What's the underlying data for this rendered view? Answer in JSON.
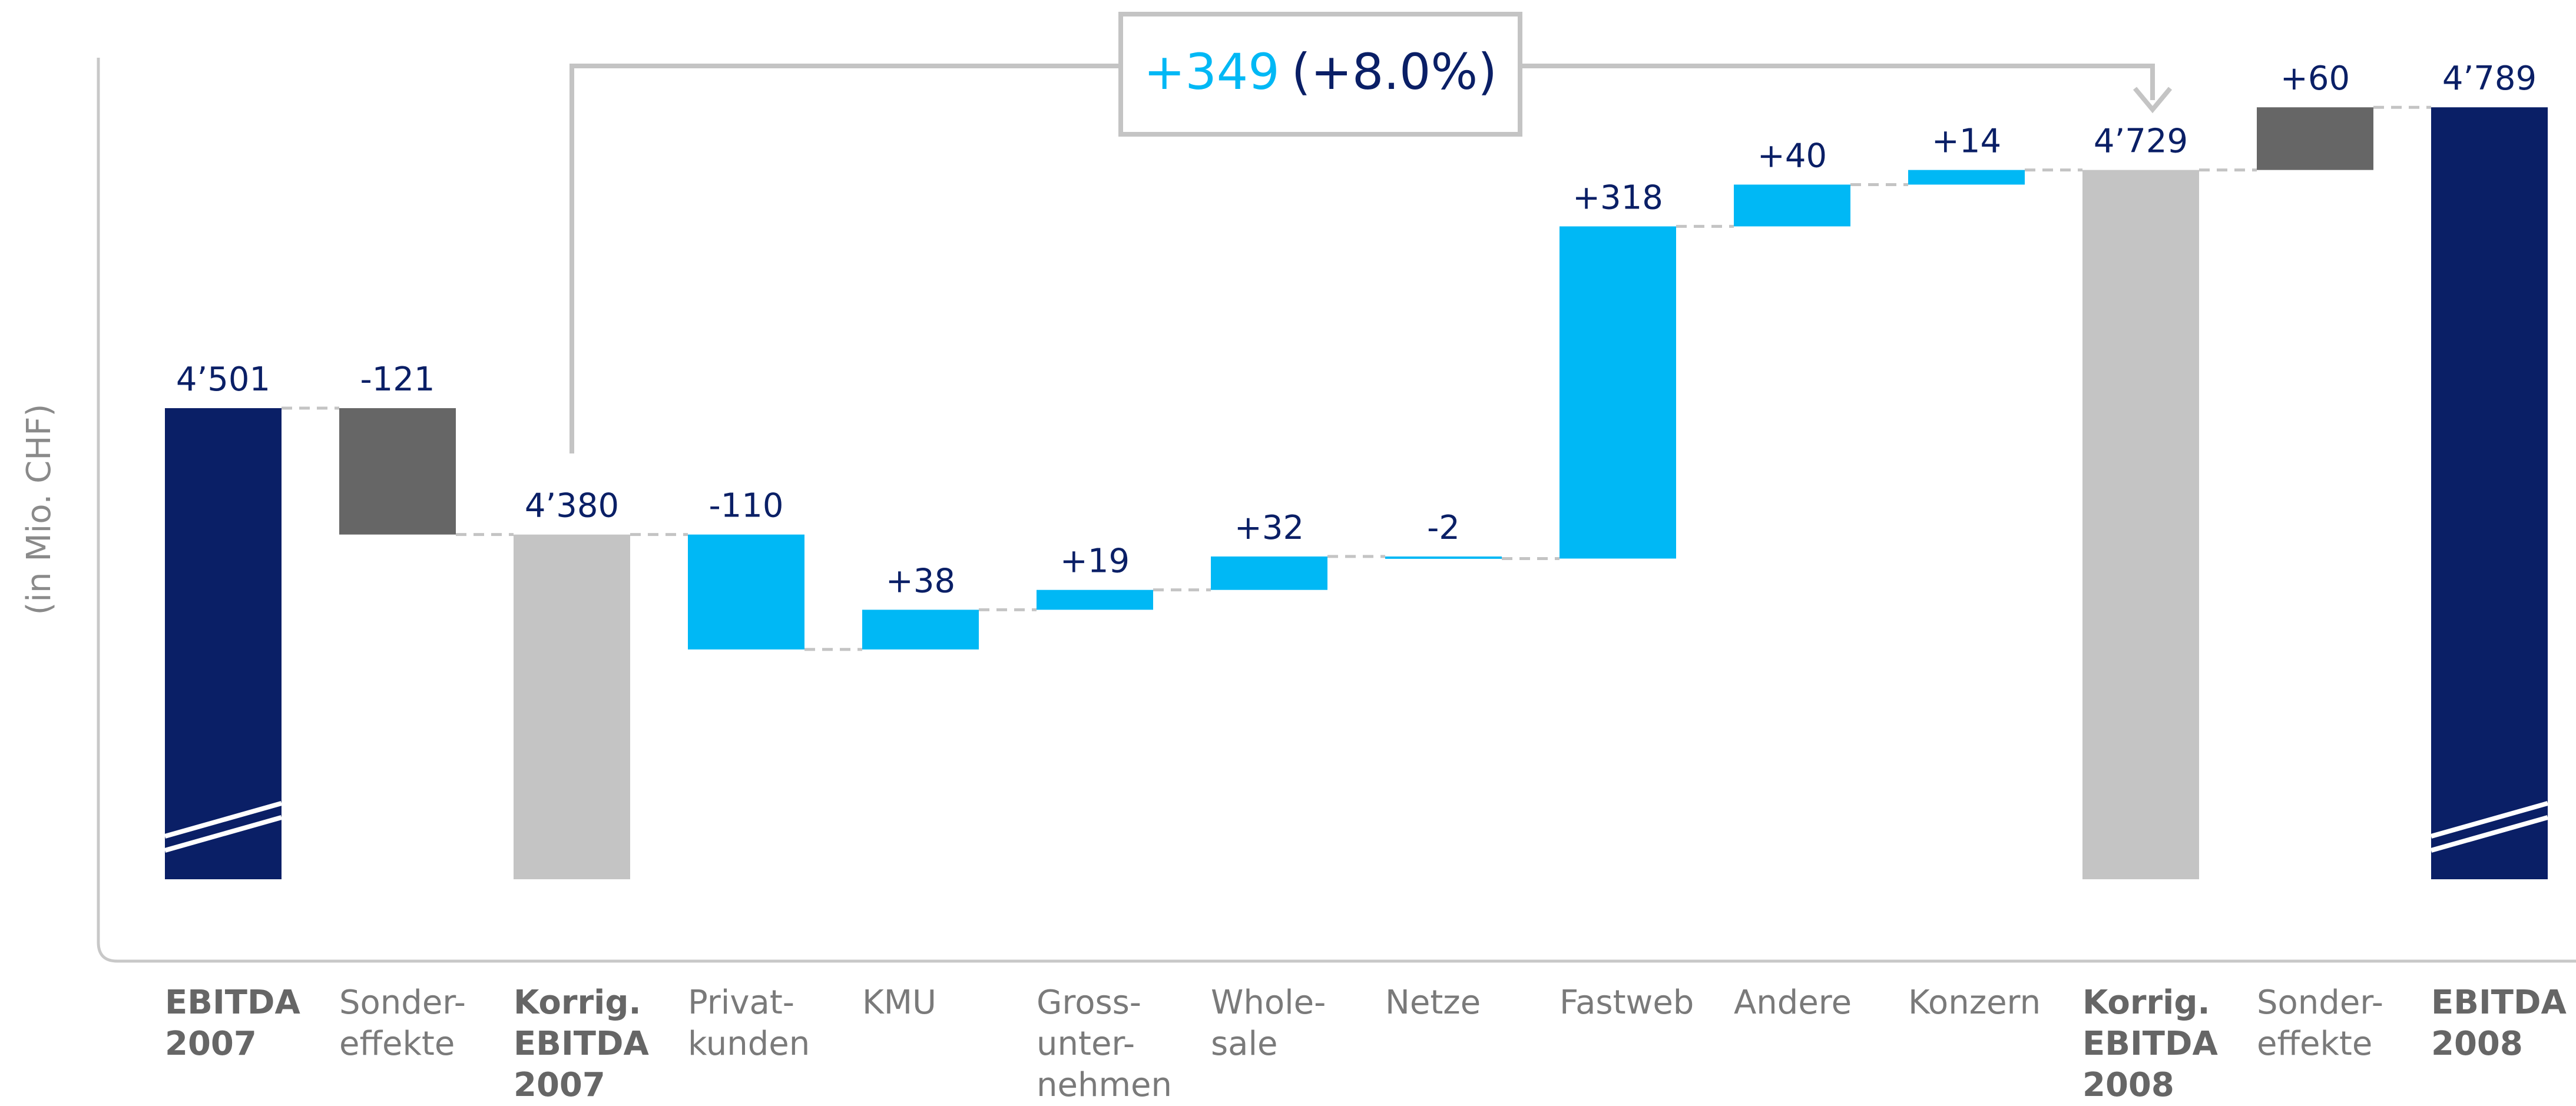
{
  "chart_data": {
    "type": "waterfall",
    "y_label": "(in Mio. CHF)",
    "annotation": {
      "change": "+349",
      "percent": "(+8.0%)"
    },
    "categories": [
      "EBITDA\n2007",
      "Sonder-\neffekte",
      "Korrig.\nEBITDA\n2007",
      "Privat-\nkunden",
      "KMU",
      "Gross-\nunter-\nnehmen",
      "Whole-\nsale",
      "Netze",
      "Fastweb",
      "Andere",
      "Konzern",
      "Korrig.\nEBITDA\n2008",
      "Sonder-\neffekte",
      "EBITDA\n2008"
    ],
    "measure": [
      "absolute",
      "relative",
      "total",
      "relative",
      "relative",
      "relative",
      "relative",
      "relative",
      "relative",
      "relative",
      "relative",
      "total",
      "relative",
      "total"
    ],
    "values": [
      4501,
      -121,
      4380,
      -110,
      38,
      19,
      32,
      -2,
      318,
      40,
      14,
      4729,
      60,
      4789
    ],
    "value_labels": [
      "4’501",
      "-121",
      "4’380",
      "-110",
      "+38",
      "+19",
      "+32",
      "-2",
      "+318",
      "+40",
      "+14",
      "4’729",
      "+60",
      "4’789"
    ],
    "colors": [
      "#0a1f66",
      "#666666",
      "#c4c4c4",
      "#00b8f5",
      "#00b8f5",
      "#00b8f5",
      "#00b8f5",
      "#00b8f5",
      "#00b8f5",
      "#00b8f5",
      "#00b8f5",
      "#c4c4c4",
      "#666666",
      "#0a1f66"
    ],
    "ylim": [
      4050,
      4850
    ],
    "axis_break": true
  }
}
